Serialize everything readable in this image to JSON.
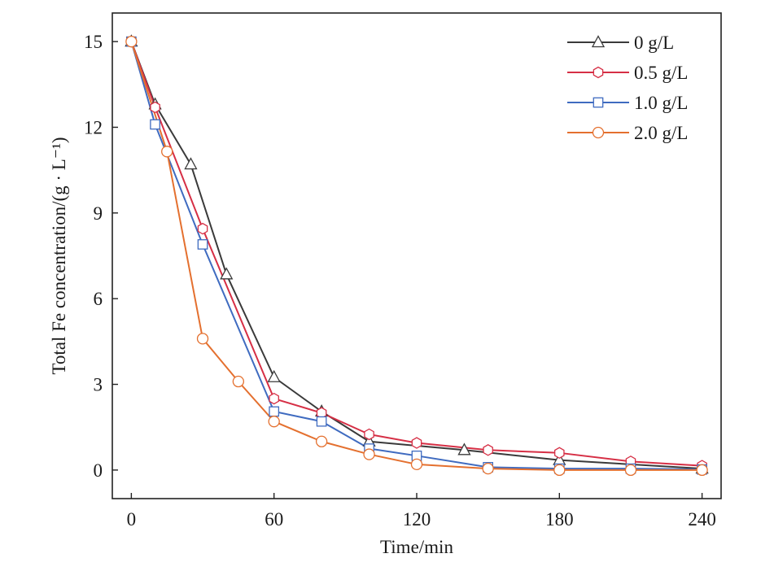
{
  "chart_data": {
    "type": "line",
    "title": "",
    "xlabel": "Time/min",
    "ylabel": "Total Fe concentration/(g · L⁻¹)",
    "xlim": [
      -8,
      248
    ],
    "ylim": [
      -1,
      16
    ],
    "xticks": [
      0,
      60,
      120,
      180,
      240
    ],
    "yticks": [
      0,
      3,
      6,
      9,
      12,
      15
    ],
    "grid": false,
    "legend_position": "top-right",
    "series": [
      {
        "name": "0 g/L",
        "color": "#3a3a3a",
        "marker": "triangle",
        "x": [
          0,
          10,
          25,
          40,
          60,
          80,
          100,
          140,
          180,
          240
        ],
        "y": [
          15.0,
          12.8,
          10.7,
          6.85,
          3.25,
          2.05,
          1.0,
          0.7,
          0.35,
          0.05
        ]
      },
      {
        "name": "0.5 g/L",
        "color": "#d62f45",
        "marker": "hexagon",
        "x": [
          0,
          10,
          30,
          60,
          80,
          100,
          120,
          150,
          180,
          210,
          240
        ],
        "y": [
          15.0,
          12.7,
          8.45,
          2.5,
          2.0,
          1.25,
          0.95,
          0.7,
          0.6,
          0.3,
          0.15
        ]
      },
      {
        "name": "1.0 g/L",
        "color": "#3f6bc0",
        "marker": "square",
        "x": [
          0,
          10,
          30,
          60,
          80,
          100,
          120,
          150,
          180,
          210,
          240
        ],
        "y": [
          15.0,
          12.1,
          7.9,
          2.05,
          1.7,
          0.75,
          0.5,
          0.1,
          0.05,
          0.05,
          0.02
        ]
      },
      {
        "name": "2.0 g/L",
        "color": "#e4702f",
        "marker": "circle",
        "x": [
          0,
          15,
          30,
          45,
          60,
          80,
          100,
          120,
          150,
          180,
          210,
          240
        ],
        "y": [
          15.0,
          11.15,
          4.6,
          3.1,
          1.7,
          1.0,
          0.55,
          0.2,
          0.05,
          0.0,
          0.0,
          0.0
        ]
      }
    ]
  }
}
